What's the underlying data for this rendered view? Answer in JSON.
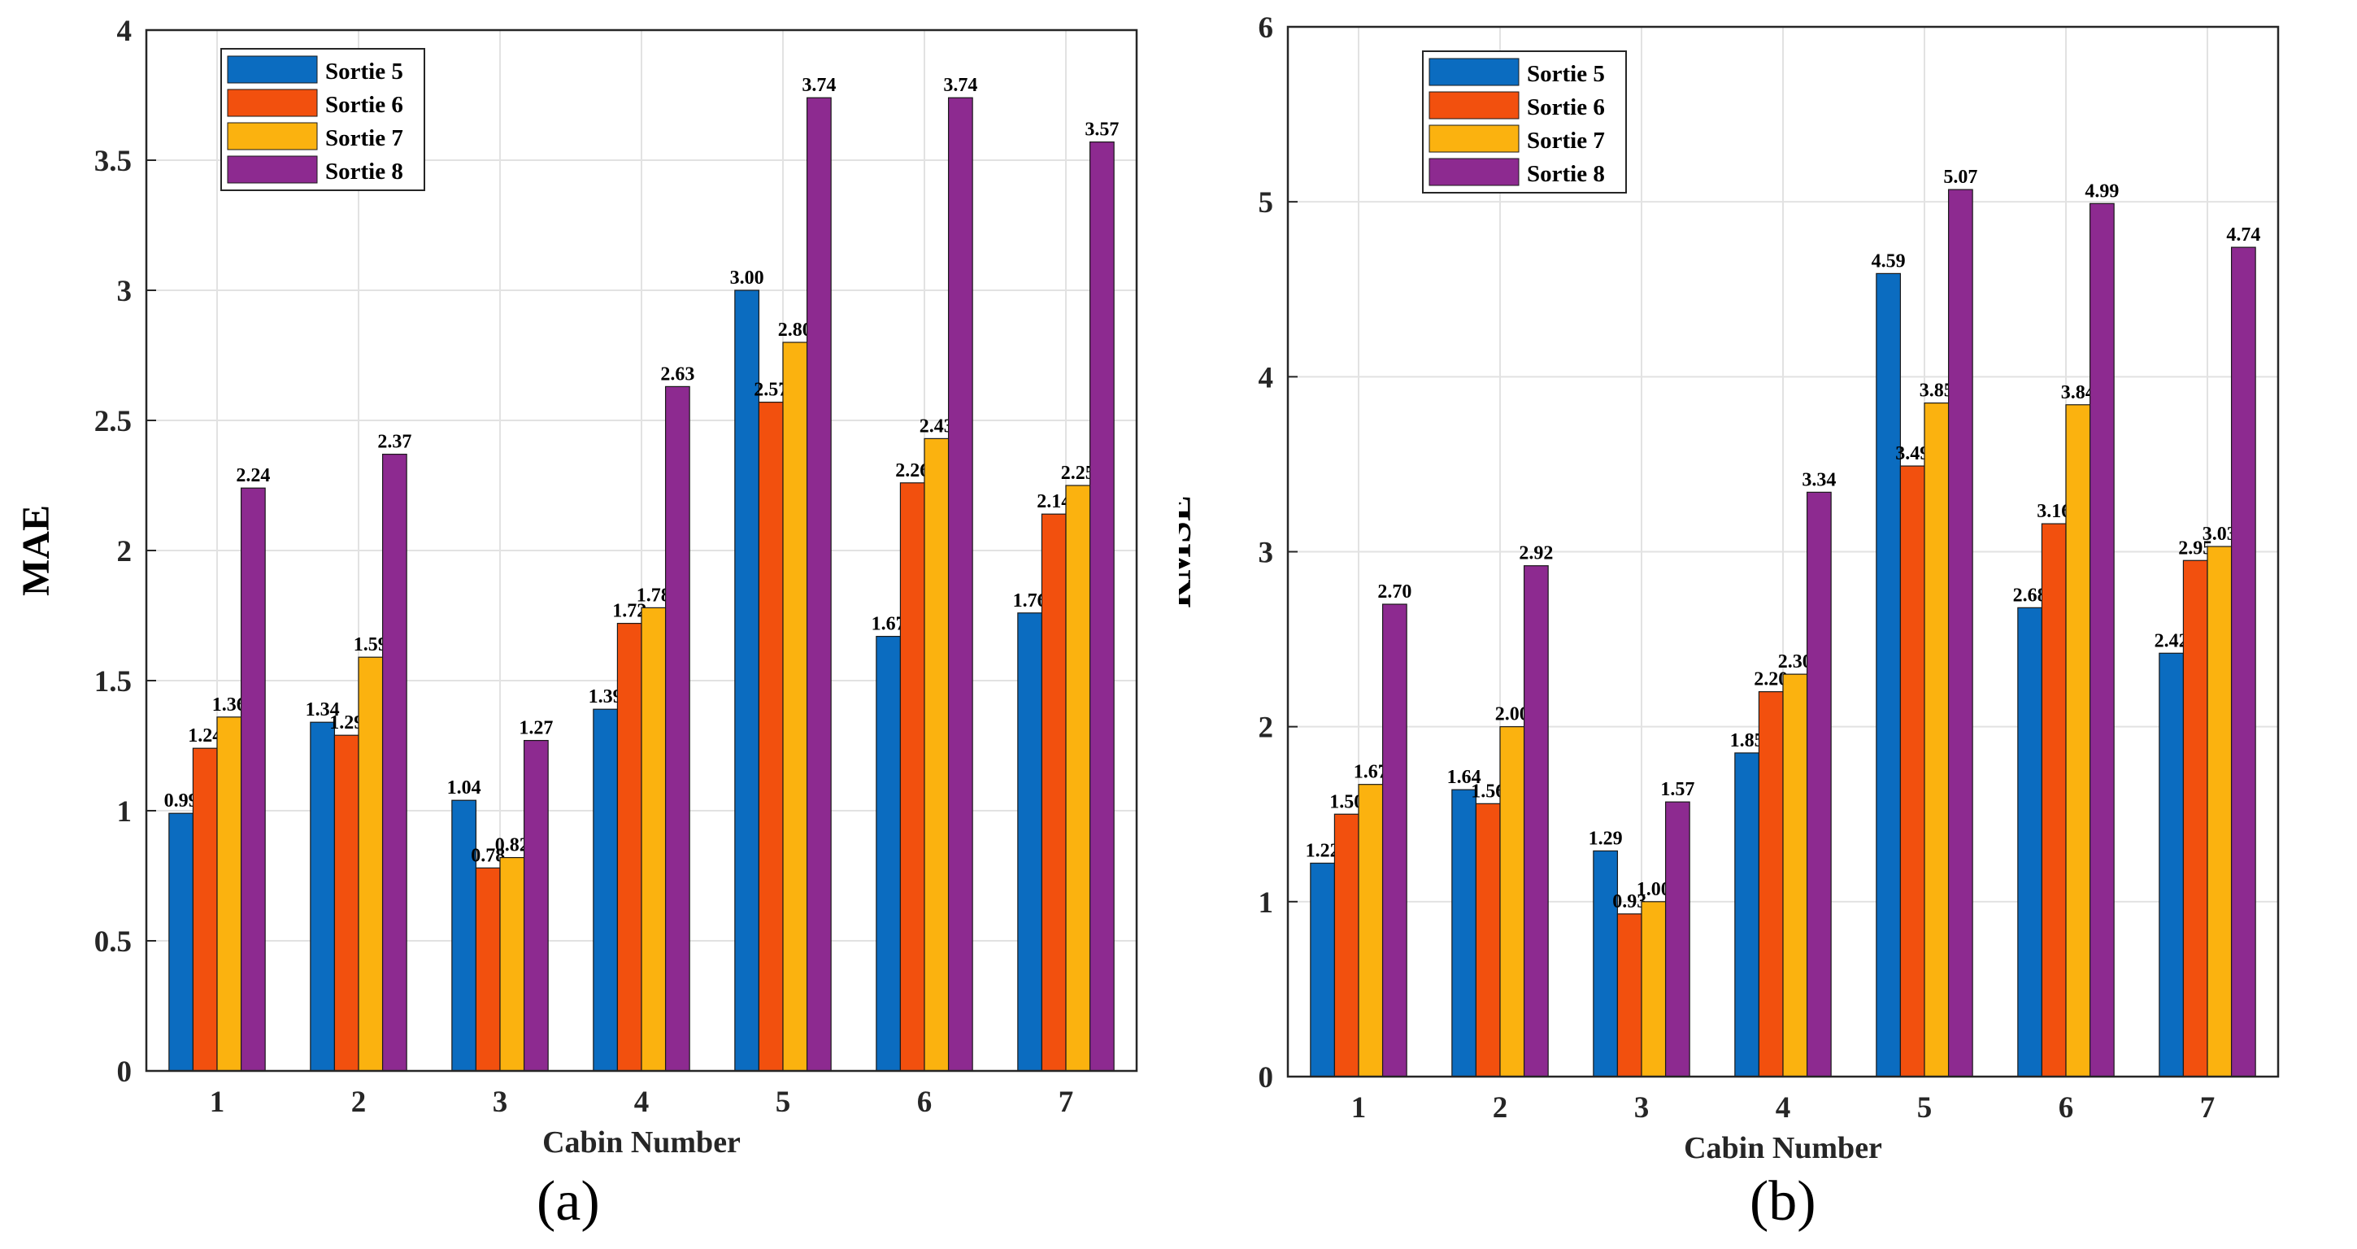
{
  "chart_data": [
    {
      "type": "bar",
      "panel_label": "(a)",
      "title": "",
      "xlabel": "Cabin Number",
      "ylabel": "MAE",
      "ylim": [
        0,
        4
      ],
      "yticks": [
        "0",
        "0.5",
        "1",
        "1.5",
        "2",
        "2.5",
        "3",
        "3.5",
        "4"
      ],
      "grid": true,
      "legend_position": "top-left",
      "categories": [
        "1",
        "2",
        "3",
        "4",
        "5",
        "6",
        "7"
      ],
      "series": [
        {
          "name": "Sortie 5",
          "color": "#0b6cc0",
          "values": [
            0.99,
            1.34,
            1.04,
            1.39,
            3.0,
            1.67,
            1.76
          ],
          "labels": [
            "0.99",
            "1.34",
            "1.04",
            "1.39",
            "3.00",
            "1.67",
            "1.76"
          ]
        },
        {
          "name": "Sortie 6",
          "color": "#f2500e",
          "values": [
            1.24,
            1.29,
            0.78,
            1.72,
            2.57,
            2.26,
            2.14
          ],
          "labels": [
            "1.24",
            "1.29",
            "0.78",
            "1.72",
            "2.57",
            "2.26",
            "2.14"
          ]
        },
        {
          "name": "Sortie 7",
          "color": "#fbb20f",
          "values": [
            1.36,
            1.59,
            0.82,
            1.78,
            2.8,
            2.43,
            2.25
          ],
          "labels": [
            "1.36",
            "1.59",
            "0.82",
            "1.78",
            "2.80",
            "2.43",
            "2.25"
          ]
        },
        {
          "name": "Sortie 8",
          "color": "#8d2a90",
          "values": [
            2.24,
            2.37,
            1.27,
            2.63,
            3.74,
            3.74,
            3.57
          ],
          "labels": [
            "2.24",
            "2.37",
            "1.27",
            "2.63",
            "3.74",
            "3.74",
            "3.57"
          ]
        }
      ]
    },
    {
      "type": "bar",
      "panel_label": "(b)",
      "title": "",
      "xlabel": "Cabin Number",
      "ylabel": "RMSE",
      "ylim": [
        0,
        6
      ],
      "yticks": [
        "0",
        "1",
        "2",
        "3",
        "4",
        "5",
        "6"
      ],
      "grid": true,
      "legend_position": "top-left",
      "categories": [
        "1",
        "2",
        "3",
        "4",
        "5",
        "6",
        "7"
      ],
      "series": [
        {
          "name": "Sortie 5",
          "color": "#0b6cc0",
          "values": [
            1.22,
            1.64,
            1.29,
            1.85,
            4.59,
            2.68,
            2.42
          ],
          "labels": [
            "1.22",
            "1.64",
            "1.29",
            "1.85",
            "4.59",
            "2.68",
            "2.42"
          ]
        },
        {
          "name": "Sortie 6",
          "color": "#f2500e",
          "values": [
            1.5,
            1.56,
            0.93,
            2.2,
            3.49,
            3.16,
            2.95
          ],
          "labels": [
            "1.50",
            "1.56",
            "0.93",
            "2.20",
            "3.49",
            "3.16",
            "2.95"
          ]
        },
        {
          "name": "Sortie 7",
          "color": "#fbb20f",
          "values": [
            1.67,
            2.0,
            1.0,
            2.3,
            3.85,
            3.84,
            3.03
          ],
          "labels": [
            "1.67",
            "2.00",
            "1.00",
            "2.30",
            "3.85",
            "3.84",
            "3.03"
          ]
        },
        {
          "name": "Sortie 8",
          "color": "#8d2a90",
          "values": [
            2.7,
            2.92,
            1.57,
            3.34,
            5.07,
            4.99,
            4.74
          ],
          "labels": [
            "2.70",
            "2.92",
            "1.57",
            "3.34",
            "5.07",
            "4.99",
            "4.74"
          ]
        }
      ]
    }
  ]
}
